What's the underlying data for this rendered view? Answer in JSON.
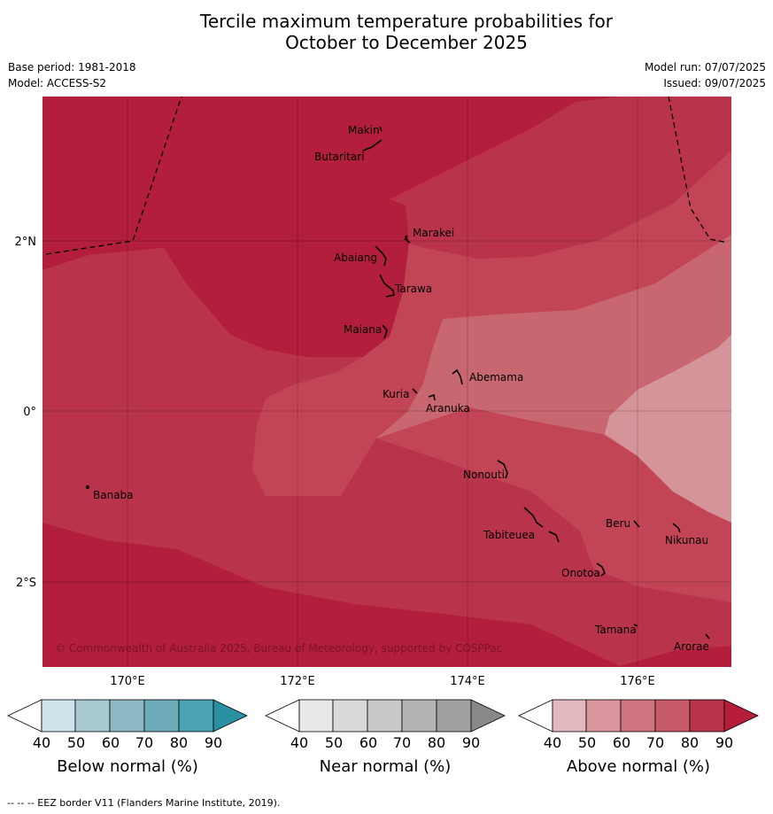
{
  "title_line1": "Tercile maximum temperature probabilities for",
  "title_line2": "October to December 2025",
  "base_period": "Base period: 1981-2018",
  "model": "Model: ACCESS-S2",
  "model_run": "Model run: 07/07/2025",
  "issued": "Issued: 09/07/2025",
  "copyright": "© Commonwealth of Australia 2025, Bureau of Meteorology, supported by COSPPac",
  "footer": "--  --  -- EEZ border V11 (Flanders Marine Institute, 2019).",
  "lon_labels": [
    "170°E",
    "172°E",
    "174°E",
    "176°E"
  ],
  "lat_labels": [
    "2°N",
    "0°",
    "2°S"
  ],
  "islands": {
    "makin": "Makin",
    "butaritari": "Butaritari",
    "marakei": "Marakei",
    "abaiang": "Abaiang",
    "tarawa": "Tarawa",
    "maiana": "Maiana",
    "abemama": "Abemama",
    "kuria": "Kuria",
    "aranuka": "Aranuka",
    "banaba": "Banaba",
    "nonouti": "Nonouti",
    "beru": "Beru",
    "nikunau": "Nikunau",
    "tabiteuea": "Tabiteuea",
    "onotoa": "Onotoa",
    "tamana": "Tamana",
    "arorae": "Arorae"
  },
  "colorbars": [
    {
      "title": "Below normal (%)",
      "ticks": [
        "40",
        "50",
        "60",
        "70",
        "80",
        "90"
      ],
      "colors": [
        "#cfe4ea",
        "#a9c9d1",
        "#8db9c5",
        "#6eabba",
        "#4aa3b2",
        "#2a8fa0"
      ]
    },
    {
      "title": "Near normal (%)",
      "ticks": [
        "40",
        "50",
        "60",
        "70",
        "80",
        "90"
      ],
      "colors": [
        "#e8e8e8",
        "#d9d9d9",
        "#c8c8c8",
        "#b4b4b4",
        "#a0a0a0",
        "#888888"
      ]
    },
    {
      "title": "Above normal (%)",
      "ticks": [
        "40",
        "50",
        "60",
        "70",
        "80",
        "90"
      ],
      "colors": [
        "#e3b8be",
        "#d9959e",
        "#cd7480",
        "#c65a68",
        "#b93448",
        "#b51e3a"
      ]
    }
  ],
  "probability_colors": {
    "p90": "#b21e3b",
    "p80": "#b9334a",
    "p70": "#c24556",
    "p60": "#c8676f",
    "p50": "#d5939a"
  }
}
